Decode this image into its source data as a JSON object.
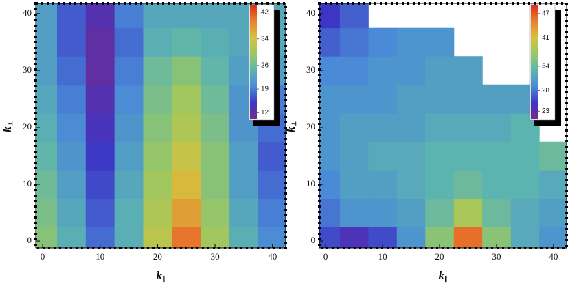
{
  "chart_data": [
    {
      "type": "contour",
      "x": [
        0,
        5,
        10,
        15,
        20,
        25,
        30,
        35,
        40
      ],
      "y": [
        0,
        5,
        10,
        15,
        20,
        25,
        30,
        35,
        40
      ],
      "z": [
        [
          28,
          24,
          18,
          24,
          32,
          40,
          30,
          24,
          20
        ],
        [
          27,
          23,
          17,
          24,
          31,
          37,
          29,
          23,
          19
        ],
        [
          26,
          22,
          16,
          23,
          30,
          35,
          28,
          22,
          18
        ],
        [
          25,
          21,
          15,
          22,
          29,
          33,
          28,
          22,
          17
        ],
        [
          24,
          20,
          14,
          21,
          28,
          31,
          27,
          21,
          18
        ],
        [
          23,
          19,
          13,
          20,
          27,
          30,
          26,
          21,
          19
        ],
        [
          22,
          18,
          12,
          19,
          26,
          28,
          25,
          22,
          22
        ],
        [
          22,
          17,
          12,
          18,
          24,
          25,
          24,
          23,
          23
        ],
        [
          22,
          17,
          13,
          19,
          23,
          23,
          23,
          23,
          23
        ]
      ],
      "xlim": [
        -1.2,
        42.3
      ],
      "ylim": [
        -1.2,
        41.8
      ],
      "xticks": [
        0,
        10,
        20,
        30,
        40
      ],
      "yticks": [
        0,
        10,
        20,
        30,
        40
      ],
      "zlim": [
        10,
        44
      ],
      "colorbar_ticks": [
        12,
        19,
        26,
        34,
        42
      ],
      "colormap": [
        "#7a2a8e",
        "#3d36c4",
        "#4a8ad6",
        "#5cb4b0",
        "#9ac862",
        "#d6c23e",
        "#e8842e",
        "#e0301e"
      ],
      "xlabel": {
        "main": "k",
        "sub": "∥"
      },
      "ylabel": {
        "main": "k",
        "sub": "⊥"
      }
    },
    {
      "type": "contour",
      "x": [
        0,
        5,
        10,
        15,
        20,
        25,
        30,
        35,
        40
      ],
      "y": [
        0,
        5,
        10,
        15,
        20,
        25,
        30,
        35,
        40
      ],
      "z": [
        [
          26,
          24,
          26,
          30,
          36,
          46,
          36,
          32,
          30
        ],
        [
          28,
          30,
          30,
          31,
          34,
          38,
          34,
          32,
          31
        ],
        [
          29,
          31,
          31,
          32,
          33,
          34,
          33,
          33,
          32
        ],
        [
          30,
          31,
          32,
          32,
          33,
          33,
          33,
          33,
          34
        ],
        [
          30,
          31,
          31,
          31,
          32,
          32,
          32,
          33,
          null
        ],
        [
          30,
          30,
          30,
          31,
          31,
          31,
          31,
          31,
          null
        ],
        [
          29,
          29,
          30,
          30,
          31,
          31,
          null,
          null,
          null
        ],
        [
          27,
          28,
          29,
          30,
          30,
          null,
          null,
          null,
          null
        ],
        [
          25,
          27,
          null,
          null,
          null,
          null,
          null,
          null,
          null
        ]
      ],
      "xlim": [
        -1.1,
        42.3
      ],
      "ylim": [
        -1.2,
        41.8
      ],
      "xticks": [
        0,
        10,
        20,
        30,
        40
      ],
      "yticks": [
        0,
        10,
        20,
        30,
        40
      ],
      "zlim": [
        21,
        49
      ],
      "colorbar_ticks": [
        23,
        28,
        34,
        41,
        47
      ],
      "colormap": [
        "#7a2a8e",
        "#3d36c4",
        "#4a8ad6",
        "#5cb4b0",
        "#9ac862",
        "#d6c23e",
        "#e8842e",
        "#e0301e"
      ],
      "xlabel": {
        "main": "k",
        "sub": "∥"
      },
      "ylabel": {
        "main": "k",
        "sub": "⊥"
      }
    }
  ]
}
